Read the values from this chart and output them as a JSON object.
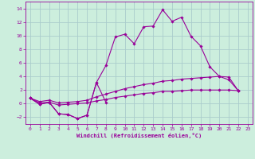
{
  "xlabel": "Windchill (Refroidissement éolien,°C)",
  "bg_color": "#cceedd",
  "grid_color": "#aacccc",
  "line_color": "#990099",
  "xlim": [
    -0.5,
    23.5
  ],
  "ylim": [
    -3,
    15
  ],
  "xticks": [
    0,
    1,
    2,
    3,
    4,
    5,
    6,
    7,
    8,
    9,
    10,
    11,
    12,
    13,
    14,
    15,
    16,
    17,
    18,
    19,
    20,
    21,
    22,
    23
  ],
  "yticks": [
    -2,
    0,
    2,
    4,
    6,
    8,
    10,
    12,
    14
  ],
  "series": [
    [
      0.8,
      -0.1,
      0.2,
      -1.5,
      -1.6,
      -2.2,
      -1.7,
      3.1,
      0.2,
      null,
      null,
      null,
      null,
      null,
      null,
      null,
      null,
      null,
      null,
      null,
      null,
      null,
      null,
      null
    ],
    [
      0.8,
      -0.1,
      0.2,
      -1.5,
      -1.6,
      -2.2,
      -1.7,
      3.1,
      5.6,
      9.8,
      10.2,
      8.8,
      11.3,
      11.4,
      13.8,
      12.1,
      12.7,
      9.9,
      8.5,
      5.4,
      4.0,
      3.5,
      1.9,
      null
    ],
    [
      0.8,
      0.3,
      0.5,
      0.1,
      0.2,
      0.3,
      0.5,
      1.0,
      1.4,
      1.8,
      2.2,
      2.5,
      2.8,
      3.0,
      3.3,
      3.4,
      3.6,
      3.7,
      3.8,
      3.9,
      4.0,
      3.9,
      1.9,
      null
    ],
    [
      0.8,
      0.1,
      0.2,
      -0.2,
      -0.1,
      0.0,
      0.1,
      0.4,
      0.6,
      0.9,
      1.1,
      1.3,
      1.5,
      1.6,
      1.8,
      1.8,
      1.9,
      2.0,
      2.0,
      2.0,
      2.0,
      2.0,
      1.9,
      null
    ]
  ]
}
